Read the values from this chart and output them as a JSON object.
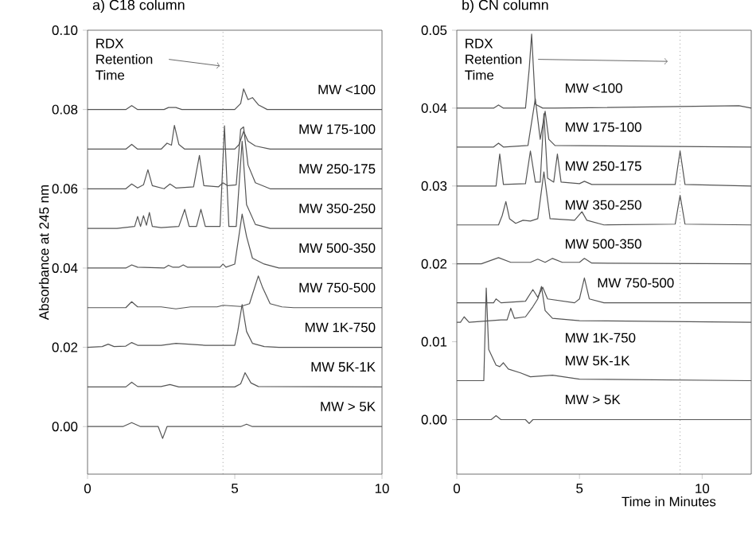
{
  "chart_data": [
    {
      "type": "line",
      "title": "a)  C18 column",
      "ylabel": "Absorbance at 245 nm",
      "xlim": [
        0,
        10
      ],
      "xticks": [
        0,
        5,
        10
      ],
      "ylim": [
        -0.012,
        0.1
      ],
      "yticks": [
        {
          "value": 0,
          "label": "0.00"
        },
        {
          "value": 0.02,
          "label": "0.02"
        },
        {
          "value": 0.04,
          "label": "0.04"
        },
        {
          "value": 0.06,
          "label": "0.06"
        },
        {
          "value": 0.08,
          "label": "0.08"
        },
        {
          "value": 0.1,
          "label": "0.10"
        }
      ],
      "marker": "none",
      "line_style": "solid",
      "grid": false,
      "ref_lines": [
        {
          "axis": "x",
          "value": 4.6,
          "line_style": "dotted"
        }
      ],
      "annotations": [
        {
          "text": "RDX Retention Time",
          "x": 4.5,
          "y": 0.091
        }
      ],
      "series": [
        {
          "name": "MW <100",
          "color": "#555555",
          "x": [
            0,
            1.3,
            1.5,
            1.7,
            2.6,
            2.75,
            3.0,
            3.2,
            5.0,
            5.2,
            5.3,
            5.45,
            5.6,
            5.8,
            6.1,
            7.0,
            10
          ],
          "values": [
            0.08,
            0.08,
            0.081,
            0.08,
            0.08,
            0.0805,
            0.0805,
            0.08,
            0.08,
            0.0815,
            0.0852,
            0.0825,
            0.083,
            0.0812,
            0.08,
            0.08,
            0.08
          ]
        },
        {
          "name": "MW 175-100",
          "color": "#555555",
          "x": [
            0,
            1.3,
            1.5,
            1.7,
            2.5,
            2.7,
            2.85,
            2.95,
            3.1,
            3.3,
            5.0,
            5.15,
            5.3,
            5.45,
            5.7,
            6.2,
            10
          ],
          "values": [
            0.07,
            0.07,
            0.0712,
            0.07,
            0.07,
            0.0715,
            0.071,
            0.076,
            0.0712,
            0.07,
            0.07,
            0.0712,
            0.0745,
            0.072,
            0.0708,
            0.07,
            0.07
          ]
        },
        {
          "name": "MW 250-175",
          "color": "#555555",
          "x": [
            0,
            1.3,
            1.5,
            1.7,
            1.9,
            2.05,
            2.2,
            2.6,
            2.8,
            3.0,
            3.6,
            3.8,
            3.95,
            4.45,
            4.6,
            4.75,
            5.05,
            5.2,
            5.3,
            5.45,
            5.7,
            6.2,
            10
          ],
          "values": [
            0.06,
            0.06,
            0.0612,
            0.0602,
            0.061,
            0.0648,
            0.0608,
            0.06,
            0.0612,
            0.0602,
            0.0605,
            0.0684,
            0.0608,
            0.0605,
            0.0615,
            0.0608,
            0.061,
            0.075,
            0.0756,
            0.066,
            0.0615,
            0.06,
            0.06
          ]
        },
        {
          "name": "MW 350-250",
          "color": "#555555",
          "x": [
            0,
            1.0,
            1.6,
            1.7,
            1.8,
            1.9,
            2.0,
            2.1,
            2.2,
            2.5,
            3.1,
            3.3,
            3.45,
            3.7,
            3.85,
            4.0,
            4.5,
            4.65,
            4.8,
            5.05,
            5.25,
            5.4,
            5.7,
            6.2,
            10
          ],
          "values": [
            0.05,
            0.05,
            0.0505,
            0.053,
            0.0505,
            0.0532,
            0.0508,
            0.054,
            0.0505,
            0.0502,
            0.0505,
            0.0548,
            0.0505,
            0.0505,
            0.0548,
            0.0505,
            0.0505,
            0.0759,
            0.0505,
            0.0505,
            0.072,
            0.056,
            0.051,
            0.05,
            0.05
          ]
        },
        {
          "name": "MW 500-350",
          "color": "#555555",
          "x": [
            0,
            1.3,
            1.5,
            1.7,
            2.6,
            2.75,
            2.9,
            3.1,
            3.25,
            3.4,
            4.5,
            4.6,
            4.7,
            5.0,
            5.25,
            5.4,
            5.6,
            6.0,
            6.5,
            10
          ],
          "values": [
            0.04,
            0.04,
            0.0408,
            0.0402,
            0.04,
            0.0407,
            0.0402,
            0.0402,
            0.0408,
            0.0402,
            0.0402,
            0.041,
            0.0402,
            0.041,
            0.0536,
            0.048,
            0.0425,
            0.041,
            0.04,
            0.04
          ]
        },
        {
          "name": "MW 750-500",
          "color": "#555555",
          "x": [
            0,
            1.3,
            1.5,
            1.7,
            2.5,
            3.0,
            3.5,
            4.4,
            4.6,
            5.2,
            5.5,
            5.65,
            5.8,
            5.95,
            6.2,
            6.6,
            7.0,
            10
          ],
          "values": [
            0.03,
            0.03,
            0.0315,
            0.0302,
            0.0302,
            0.0297,
            0.0302,
            0.0302,
            0.0306,
            0.0303,
            0.031,
            0.0345,
            0.038,
            0.035,
            0.031,
            0.0302,
            0.03,
            0.03
          ]
        },
        {
          "name": "MW 1K-750",
          "color": "#555555",
          "x": [
            0,
            0.5,
            0.7,
            0.9,
            1.3,
            1.5,
            1.7,
            2.5,
            3.0,
            4.0,
            5.0,
            5.1,
            5.25,
            5.4,
            5.6,
            6.0,
            6.5,
            10
          ],
          "values": [
            0.02,
            0.0202,
            0.0208,
            0.0202,
            0.0203,
            0.0212,
            0.0205,
            0.0205,
            0.021,
            0.0205,
            0.0205,
            0.024,
            0.0308,
            0.024,
            0.021,
            0.0202,
            0.02,
            0.02
          ]
        },
        {
          "name": "MW 5K-1K",
          "color": "#555555",
          "x": [
            0,
            1.3,
            1.5,
            1.7,
            2.5,
            2.8,
            3.1,
            5.0,
            5.2,
            5.35,
            5.55,
            5.8,
            10
          ],
          "values": [
            0.01,
            0.01,
            0.0112,
            0.0101,
            0.0101,
            0.0106,
            0.01,
            0.01,
            0.0108,
            0.0136,
            0.011,
            0.0101,
            0.01
          ]
        },
        {
          "name": "MW > 5K",
          "color": "#555555",
          "x": [
            0,
            1.2,
            1.5,
            1.8,
            2.4,
            2.55,
            2.7,
            5.2,
            5.4,
            5.6,
            10
          ],
          "values": [
            0,
            0,
            0.001,
            0,
            0,
            -0.003,
            0,
            0,
            0.0006,
            0,
            0
          ]
        }
      ]
    },
    {
      "type": "line",
      "title": "b) CN column",
      "xlabel": "Time in Minutes",
      "xlim": [
        0,
        12
      ],
      "xticks": [
        0,
        5,
        10
      ],
      "ylim": [
        -0.007,
        0.05
      ],
      "yticks": [
        {
          "value": 0,
          "label": "0.00"
        },
        {
          "value": 0.01,
          "label": "0.01"
        },
        {
          "value": 0.02,
          "label": "0.02"
        },
        {
          "value": 0.03,
          "label": "0.03"
        },
        {
          "value": 0.04,
          "label": "0.04"
        },
        {
          "value": 0.05,
          "label": "0.05"
        }
      ],
      "marker": "none",
      "line_style": "solid",
      "grid": false,
      "ref_lines": [
        {
          "axis": "x",
          "value": 9.1,
          "line_style": "dotted"
        }
      ],
      "annotations": [
        {
          "text": "RDX Retention Time",
          "x": 8.6,
          "y": 0.046
        }
      ],
      "series": [
        {
          "name": "MW <100",
          "color": "#555555",
          "x": [
            0,
            1.5,
            1.7,
            1.9,
            2.8,
            2.95,
            3.05,
            3.2,
            3.5,
            4.0,
            11.5,
            12
          ],
          "values": [
            0.04,
            0.04,
            0.0404,
            0.04,
            0.04,
            0.045,
            0.0495,
            0.0405,
            0.04,
            0.04,
            0.0403,
            0.04
          ]
        },
        {
          "name": "MW 175-100",
          "color": "#555555",
          "x": [
            0,
            1.5,
            1.7,
            1.9,
            2.9,
            3.2,
            3.4,
            3.6,
            3.75,
            4.0,
            12
          ],
          "values": [
            0.035,
            0.035,
            0.0355,
            0.035,
            0.0352,
            0.0412,
            0.036,
            0.0396,
            0.036,
            0.0352,
            0.035
          ]
        },
        {
          "name": "MW 250-175",
          "color": "#555555",
          "x": [
            0,
            1.6,
            1.75,
            1.9,
            2.8,
            3.0,
            3.2,
            3.4,
            3.55,
            3.7,
            3.95,
            4.1,
            4.25,
            5.0,
            5.2,
            5.5,
            8.9,
            9.1,
            9.3,
            12
          ],
          "values": [
            0.03,
            0.03,
            0.0341,
            0.0302,
            0.0303,
            0.0345,
            0.0305,
            0.0305,
            0.0393,
            0.031,
            0.0305,
            0.0341,
            0.0305,
            0.0303,
            0.0306,
            0.0302,
            0.0302,
            0.0345,
            0.0302,
            0.03
          ]
        },
        {
          "name": "MW 350-250",
          "color": "#555555",
          "x": [
            0,
            1.7,
            1.85,
            2.0,
            2.15,
            2.4,
            2.7,
            3.0,
            3.3,
            3.55,
            3.8,
            4.8,
            5.1,
            5.3,
            6.0,
            8.9,
            9.1,
            9.3,
            12
          ],
          "values": [
            0.025,
            0.025,
            0.0262,
            0.028,
            0.0258,
            0.0252,
            0.0256,
            0.0255,
            0.0258,
            0.0318,
            0.0258,
            0.0256,
            0.0267,
            0.0256,
            0.025,
            0.0251,
            0.0288,
            0.0251,
            0.025
          ]
        },
        {
          "name": "MW 500-350",
          "color": "#555555",
          "x": [
            0,
            1.0,
            1.7,
            2.2,
            3.0,
            3.3,
            3.6,
            3.9,
            4.3,
            5.0,
            5.2,
            5.5,
            12
          ],
          "values": [
            0.02,
            0.02,
            0.0208,
            0.0202,
            0.0202,
            0.0206,
            0.0202,
            0.0207,
            0.0202,
            0.0202,
            0.0207,
            0.0201,
            0.02
          ]
        },
        {
          "name": "MW 750-500",
          "color": "#555555",
          "x": [
            0,
            1.5,
            1.6,
            1.8,
            2.8,
            3.1,
            3.3,
            3.5,
            3.7,
            4.8,
            5.0,
            5.2,
            5.4,
            6.0,
            12
          ],
          "values": [
            0.015,
            0.015,
            0.0155,
            0.015,
            0.0152,
            0.0167,
            0.0157,
            0.017,
            0.0155,
            0.015,
            0.0155,
            0.0182,
            0.0155,
            0.015,
            0.015
          ]
        },
        {
          "name": "MW 1K-750",
          "color": "#555555",
          "x": [
            0,
            0.15,
            0.3,
            0.5,
            1.8,
            2.05,
            2.2,
            2.35,
            2.8,
            3.1,
            3.3,
            3.45,
            3.6,
            3.9,
            5.0,
            12
          ],
          "values": [
            0.0125,
            0.0125,
            0.0132,
            0.0125,
            0.0128,
            0.0128,
            0.0143,
            0.013,
            0.0132,
            0.0145,
            0.0155,
            0.0171,
            0.014,
            0.013,
            0.0127,
            0.0125
          ]
        },
        {
          "name": "MW 5K-1K",
          "color": "#555555",
          "x": [
            0,
            1.1,
            1.2,
            1.3,
            1.6,
            1.75,
            1.9,
            2.1,
            2.6,
            3.0,
            3.9,
            5.0,
            12
          ],
          "values": [
            0.005,
            0.005,
            0.0169,
            0.009,
            0.007,
            0.0068,
            0.0073,
            0.0065,
            0.006,
            0.0055,
            0.0057,
            0.0052,
            0.005
          ]
        },
        {
          "name": "MW > 5K",
          "color": "#555555",
          "x": [
            0,
            1.4,
            1.6,
            1.8,
            2.8,
            2.95,
            3.1,
            12
          ],
          "values": [
            0,
            0,
            0.0005,
            0,
            0,
            -0.0005,
            0,
            0
          ]
        }
      ]
    }
  ]
}
